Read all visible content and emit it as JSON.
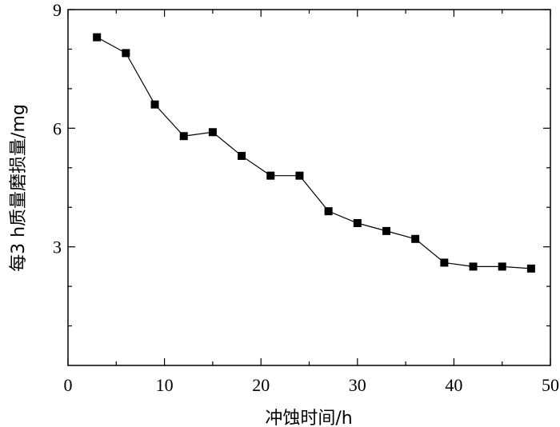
{
  "chart_data": {
    "type": "line",
    "title": "",
    "xlabel": "冲蚀时间/h",
    "ylabel": "每3 h质量磨损量/mg",
    "xlim": [
      0,
      50
    ],
    "ylim": [
      0,
      9
    ],
    "xticks": [
      0,
      10,
      20,
      30,
      40,
      50
    ],
    "yticks": [
      3,
      6,
      9
    ],
    "grid": false,
    "legend": "none",
    "colors": {
      "line": "#000000",
      "marker": "#000000"
    },
    "series": [
      {
        "marker": "square",
        "x": [
          3,
          6,
          9,
          12,
          15,
          18,
          21,
          24,
          27,
          30,
          33,
          36,
          39,
          42,
          45,
          48
        ],
        "y": [
          8.3,
          7.9,
          6.6,
          5.8,
          5.9,
          5.3,
          4.8,
          4.8,
          3.9,
          3.6,
          3.4,
          3.2,
          2.6,
          2.5,
          2.5,
          2.45
        ]
      }
    ]
  }
}
